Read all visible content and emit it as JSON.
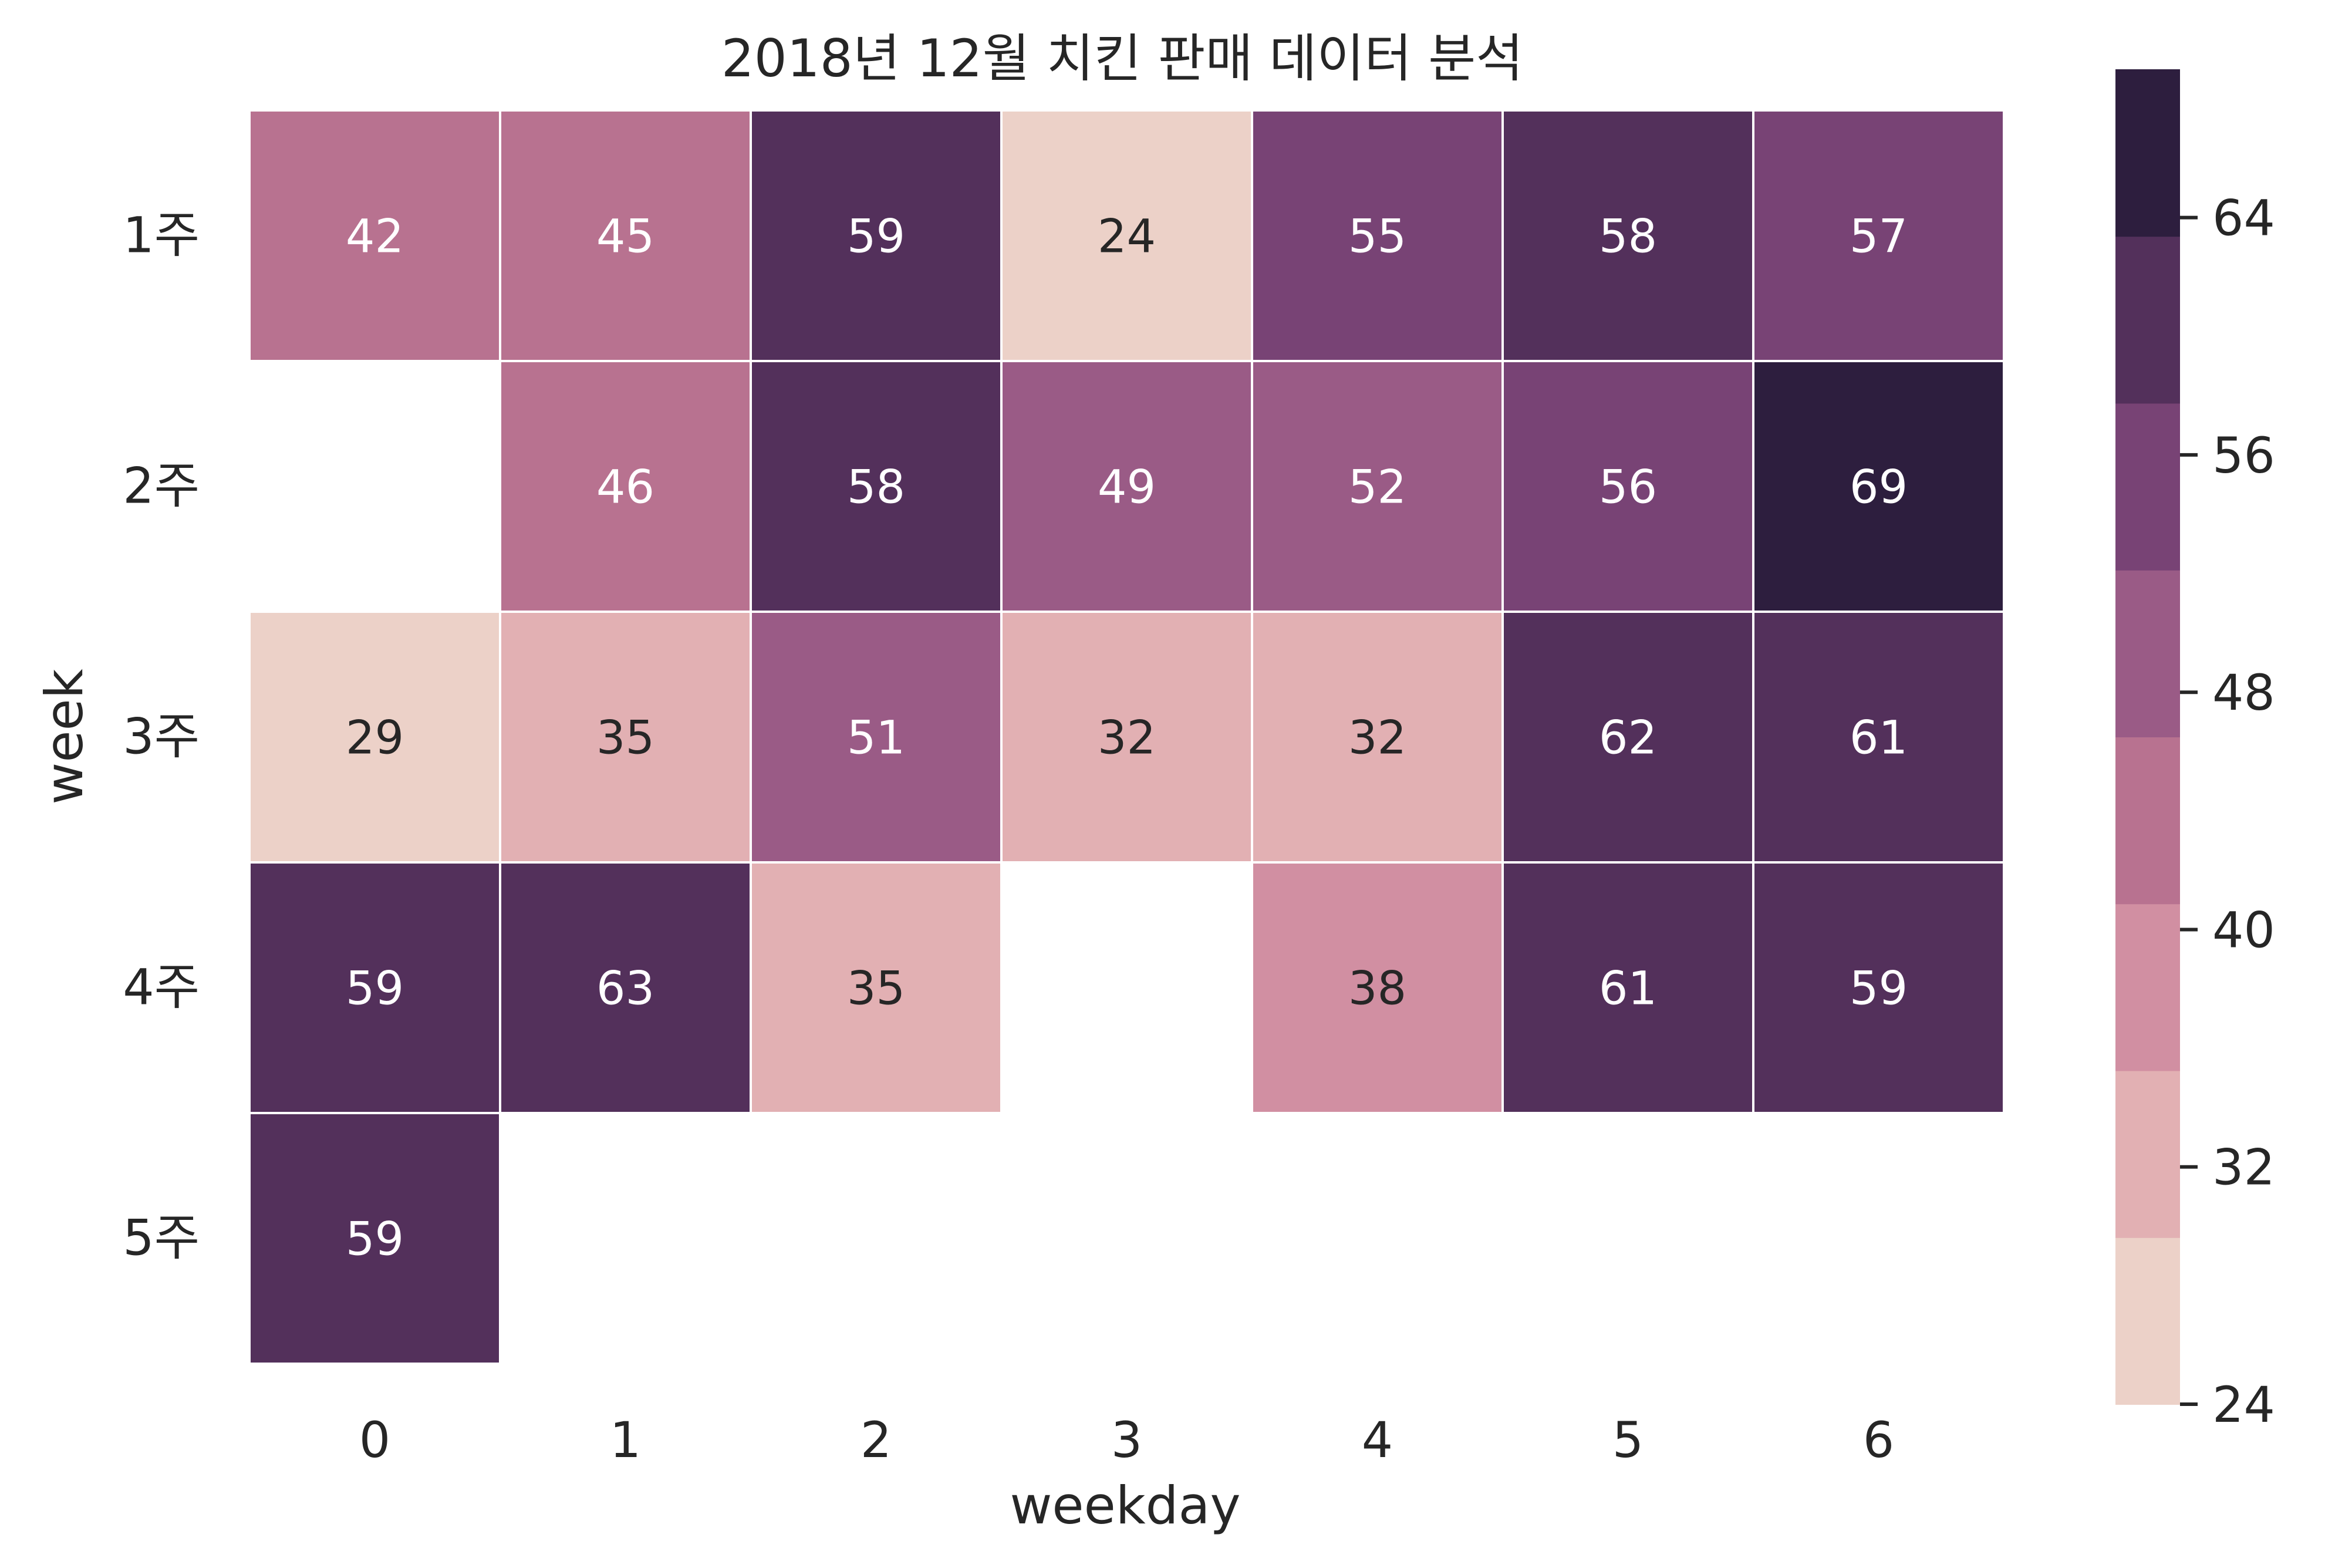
{
  "chart_data": {
    "type": "heatmap",
    "title": "2018년 12월 치킨 판매 데이터 분석",
    "xlabel": "weekday",
    "ylabel": "week",
    "x_categories": [
      "0",
      "1",
      "2",
      "3",
      "4",
      "5",
      "6"
    ],
    "y_categories": [
      "1주",
      "2주",
      "3주",
      "4주",
      "5주"
    ],
    "values": [
      [
        42,
        45,
        59,
        24,
        55,
        58,
        57
      ],
      [
        null,
        46,
        58,
        49,
        52,
        56,
        69
      ],
      [
        29,
        35,
        51,
        32,
        32,
        62,
        61
      ],
      [
        59,
        63,
        35,
        null,
        38,
        61,
        59
      ],
      [
        59,
        null,
        null,
        null,
        null,
        null,
        null
      ]
    ],
    "annotated": true,
    "colorbar": {
      "min": 24,
      "max": 69,
      "ticks": [
        24,
        32,
        40,
        48,
        56,
        64
      ],
      "tick_labels": [
        "24",
        "32",
        "40",
        "48",
        "56",
        "64"
      ],
      "levels": 8,
      "palette": [
        "#ecd1c8",
        "#e2b0b3",
        "#d18fa2",
        "#b87290",
        "#9a5b86",
        "#784375",
        "#53305b",
        "#2d1e3e"
      ],
      "placement": "right"
    },
    "cell_border_color": "#ffffff",
    "light_text_color": "#ffffff",
    "dark_text_color": "#262626"
  }
}
